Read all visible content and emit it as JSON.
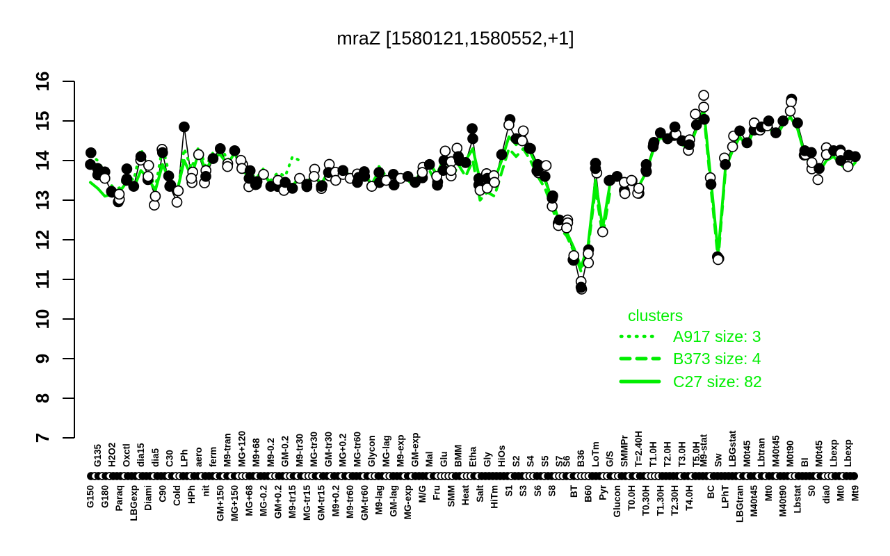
{
  "title": "mraZ [1580121,1580552,+1]",
  "colors": {
    "cluster_green": "#00EE00",
    "series_black": "#000000",
    "background": "#FFFFFF"
  },
  "legend": {
    "heading": "clusters",
    "items": [
      {
        "label": "A917 size: 3",
        "style": "dotted"
      },
      {
        "label": "B373 size: 4",
        "style": "dashed"
      },
      {
        "label": "C27 size: 82",
        "style": "solid"
      }
    ]
  },
  "chart_data": {
    "type": "line",
    "title": "mraZ [1580121,1580552,+1]",
    "ylabel": "",
    "xlabel": "",
    "ylim": [
      7,
      16
    ],
    "yticks": [
      7,
      8,
      9,
      10,
      11,
      12,
      13,
      14,
      15,
      16
    ],
    "grid": false,
    "legend_position": "right-middle",
    "x_axis_note": "experimental condition labels alternate above/below a rug of replicate markers",
    "conditions": [
      [
        "G150",
        "b",
        13.9,
        1
      ],
      [
        "G135",
        "t",
        13.8,
        1
      ],
      [
        "G180",
        "b",
        13.55,
        0
      ],
      [
        "H2O2",
        "t",
        13.2,
        1
      ],
      [
        "Paraq",
        "b",
        13.15,
        0
      ],
      [
        "Oxctl",
        "t",
        13.5,
        1
      ],
      [
        "LBGexp",
        "b",
        13.35,
        1
      ],
      [
        "dia15",
        "t",
        14.1,
        1
      ],
      [
        "Diami",
        "b",
        13.6,
        0
      ],
      [
        "dia5",
        "t",
        13.1,
        0
      ],
      [
        "C90",
        "b",
        14.2,
        1
      ],
      [
        "C30",
        "t",
        13.35,
        1
      ],
      [
        "Cold",
        "b",
        12.95,
        0
      ],
      [
        "LPh",
        "t",
        14.85,
        1
      ],
      [
        "HPh",
        "b",
        13.55,
        0
      ],
      [
        "aero",
        "t",
        14.15,
        0
      ],
      [
        "nit",
        "b",
        13.6,
        1
      ],
      [
        "ferm",
        "t",
        14.05,
        1
      ],
      [
        "GM+150",
        "b",
        14.3,
        1
      ],
      [
        "M9-tran",
        "t",
        13.85,
        0
      ],
      [
        "MG+150",
        "b",
        14.25,
        1
      ],
      [
        "MG+120",
        "t",
        13.8,
        0
      ],
      [
        "MG+68",
        "b",
        13.55,
        1
      ],
      [
        "M9+68",
        "t",
        13.4,
        1
      ],
      [
        "MG-0.2",
        "b",
        13.65,
        0
      ],
      [
        "M9-0.2",
        "t",
        13.35,
        1
      ],
      [
        "GM+0.2",
        "b",
        13.5,
        0
      ],
      [
        "GM-0.2",
        "t",
        13.45,
        1
      ],
      [
        "M9-tr15",
        "b",
        13.3,
        1
      ],
      [
        "M9-tr30",
        "t",
        13.55,
        0
      ],
      [
        "MG-tr15",
        "b",
        13.4,
        1
      ],
      [
        "MG-tr30",
        "t",
        13.6,
        0
      ],
      [
        "GM-tr15",
        "b",
        13.35,
        1
      ],
      [
        "GM-tr30",
        "t",
        13.7,
        1
      ],
      [
        "M9+0.2",
        "b",
        13.5,
        0
      ],
      [
        "MG+0.2",
        "t",
        13.75,
        1
      ],
      [
        "M9-tr60",
        "b",
        13.55,
        0
      ],
      [
        "MG-tr60",
        "t",
        13.45,
        1
      ],
      [
        "GM-tr60",
        "b",
        13.6,
        1
      ],
      [
        "Glycon",
        "t",
        13.35,
        0
      ],
      [
        "M9-lag",
        "b",
        13.7,
        1
      ],
      [
        "MG-lag",
        "t",
        13.5,
        0
      ],
      [
        "GM-lag",
        "b",
        13.65,
        1
      ],
      [
        "M9-exp",
        "t",
        13.55,
        0
      ],
      [
        "MG-exp",
        "b",
        13.6,
        1
      ],
      [
        "GM-exp",
        "t",
        13.45,
        1
      ],
      [
        "M/G",
        "b",
        13.7,
        0
      ],
      [
        "Mal",
        "t",
        13.9,
        1
      ],
      [
        "Fru",
        "b",
        13.6,
        0
      ],
      [
        "Glu",
        "t",
        14.0,
        1
      ],
      [
        "SMM",
        "b",
        13.75,
        0
      ],
      [
        "BMM",
        "t",
        14.1,
        1
      ],
      [
        "Heat",
        "b",
        13.95,
        1
      ],
      [
        "Etha",
        "t",
        14.55,
        1
      ],
      [
        "Salt",
        "b",
        13.25,
        0
      ],
      [
        "Gly",
        "t",
        13.55,
        1
      ],
      [
        "HiTm",
        "b",
        13.45,
        0
      ],
      [
        "HiOs",
        "t",
        14.15,
        1
      ],
      [
        "S1",
        "b",
        14.9,
        0
      ],
      [
        "S2",
        "t",
        14.55,
        1
      ],
      [
        "S3",
        "b",
        14.75,
        0
      ],
      [
        "S4",
        "t",
        14.3,
        1
      ],
      [
        "S6",
        "b",
        13.9,
        1
      ],
      [
        "S5",
        "t",
        13.6,
        1
      ],
      [
        "S8",
        "b",
        13.05,
        1
      ],
      [
        "S7",
        "t",
        12.5,
        1
      ],
      [
        "S6",
        "t",
        12.3,
        0
      ],
      [
        "BT",
        "b",
        11.6,
        0
      ],
      [
        "B36",
        "t",
        10.8,
        1
      ],
      [
        "B60",
        "b",
        11.65,
        0
      ],
      [
        "LoTm",
        "t",
        13.8,
        1
      ],
      [
        "Pyr",
        "b",
        12.2,
        0
      ],
      [
        "G/S",
        "t",
        13.5,
        1
      ],
      [
        "Glucon",
        "b",
        13.6,
        1
      ],
      [
        "SMMPr",
        "t",
        13.45,
        0
      ],
      [
        "T0.0H",
        "b",
        13.5,
        0
      ],
      [
        "T=2.40H",
        "t",
        13.3,
        0
      ],
      [
        "T0.30H",
        "b",
        13.75,
        1
      ],
      [
        "T1.0H",
        "t",
        14.35,
        1
      ],
      [
        "T1.30H",
        "b",
        14.7,
        1
      ],
      [
        "T2.0H",
        "t",
        14.55,
        1
      ],
      [
        "T2.30H",
        "b",
        14.85,
        1
      ],
      [
        "T3.0H",
        "t",
        14.5,
        1
      ],
      [
        "T4.0H",
        "b",
        14.4,
        1
      ],
      [
        "T5.0H",
        "t",
        14.9,
        1
      ],
      [
        "M9-stat",
        "t",
        15.35,
        0
      ],
      [
        "BC",
        "b",
        13.4,
        1
      ],
      [
        "Sw",
        "t",
        11.5,
        0
      ],
      [
        "LPhT",
        "b",
        13.9,
        1
      ],
      [
        "LBGstat",
        "t",
        14.35,
        0
      ],
      [
        "LBGtran",
        "b",
        14.75,
        1
      ],
      [
        "M0t45",
        "t",
        14.45,
        1
      ],
      [
        "M40t45",
        "b",
        14.95,
        0
      ],
      [
        "Lbtran",
        "t",
        14.85,
        1
      ],
      [
        "Mt0",
        "b",
        15.0,
        1
      ],
      [
        "M40t45",
        "t",
        14.7,
        1
      ],
      [
        "M40t90",
        "b",
        15.0,
        1
      ],
      [
        "M0t90",
        "t",
        15.25,
        0
      ],
      [
        "Lbstat",
        "b",
        14.95,
        1
      ],
      [
        "BI",
        "t",
        14.25,
        1
      ],
      [
        "S0",
        "b",
        13.95,
        0
      ],
      [
        "M0t45",
        "t",
        13.8,
        1
      ],
      [
        "dia0",
        "b",
        14.15,
        0
      ],
      [
        "Lbexp",
        "t",
        14.25,
        1
      ],
      [
        "Mt0",
        "b",
        14.0,
        1
      ],
      [
        "Lbexp",
        "t",
        13.85,
        0
      ],
      [
        "Mt9",
        "b",
        14.1,
        1
      ]
    ],
    "series": [
      {
        "name": "C27",
        "style": "solid",
        "color": "#00EE00",
        "values": [
          13.45,
          13.3,
          13.1,
          13.15,
          13.2,
          13.45,
          13.3,
          13.75,
          13.55,
          13.25,
          13.9,
          13.5,
          13.2,
          14.0,
          13.6,
          14.2,
          13.75,
          14.1,
          14.15,
          13.9,
          14.2,
          13.75,
          13.6,
          13.45,
          13.7,
          13.4,
          13.55,
          13.5,
          13.35,
          13.6,
          13.45,
          13.65,
          13.4,
          13.75,
          13.55,
          13.8,
          13.6,
          13.5,
          13.65,
          13.4,
          13.75,
          13.55,
          13.7,
          13.6,
          13.65,
          13.5,
          13.75,
          13.95,
          13.65,
          14.05,
          13.8,
          14.15,
          14.0,
          14.3,
          13.5,
          13.6,
          13.5,
          14.0,
          14.6,
          14.4,
          14.55,
          14.2,
          13.8,
          13.5,
          13.0,
          12.45,
          12.2,
          11.8,
          11.3,
          11.9,
          13.5,
          12.3,
          13.4,
          13.55,
          13.4,
          13.45,
          13.35,
          13.7,
          14.25,
          14.6,
          14.45,
          14.75,
          14.4,
          14.3,
          14.8,
          15.3,
          13.5,
          11.65,
          13.8,
          14.25,
          14.6,
          14.35,
          14.8,
          14.7,
          14.85,
          14.6,
          14.9,
          15.1,
          14.8,
          14.15,
          13.85,
          13.7,
          14.0,
          14.1,
          13.9,
          13.75,
          13.95
        ]
      },
      {
        "name": "B373",
        "style": "dashed",
        "color": "#00EE00",
        "points": [
          [
            44,
            13.5
          ],
          [
            45,
            13.35
          ],
          [
            46,
            13.55
          ],
          [
            47,
            13.75
          ],
          [
            48,
            13.4
          ],
          [
            49,
            13.8
          ],
          [
            50,
            13.5
          ],
          [
            51,
            13.9
          ],
          [
            52,
            13.6
          ],
          [
            53,
            14.0
          ],
          [
            54,
            13.0
          ],
          [
            55,
            13.2
          ],
          [
            56,
            13.1
          ],
          [
            57,
            13.7
          ],
          [
            58,
            14.3
          ],
          [
            59,
            14.1
          ],
          [
            60,
            14.3
          ],
          [
            61,
            14.0
          ],
          [
            62,
            13.6
          ],
          [
            63,
            13.3
          ],
          [
            64,
            12.8
          ],
          [
            65,
            12.3
          ],
          [
            66,
            12.1
          ],
          [
            67,
            11.7
          ],
          [
            68,
            11.2
          ],
          [
            69,
            11.8
          ],
          [
            70,
            13.3
          ],
          [
            71,
            12.1
          ],
          [
            72,
            13.2
          ],
          [
            85,
            15.2
          ],
          [
            86,
            13.3
          ],
          [
            87,
            11.5
          ],
          [
            88,
            13.7
          ]
        ]
      },
      {
        "name": "A917",
        "style": "dotted",
        "color": "#00EE00",
        "points": [
          [
            0,
            14.15
          ],
          [
            1,
            14.0
          ],
          [
            2,
            13.7
          ],
          [
            3,
            13.35
          ],
          [
            4,
            13.3
          ],
          [
            5,
            13.65
          ],
          [
            6,
            13.5
          ],
          [
            7,
            14.3
          ],
          [
            8,
            13.8
          ],
          [
            9,
            13.3
          ],
          [
            10,
            14.35
          ],
          [
            11,
            13.6
          ],
          [
            12,
            13.1
          ],
          [
            13,
            14.3
          ],
          [
            14,
            13.8
          ],
          [
            15,
            14.35
          ],
          [
            16,
            13.85
          ],
          [
            17,
            14.2
          ],
          [
            18,
            14.4
          ],
          [
            19,
            14.0
          ],
          [
            20,
            14.3
          ],
          [
            21,
            13.9
          ],
          [
            22,
            13.7
          ],
          [
            23,
            13.55
          ],
          [
            24,
            13.8
          ],
          [
            25,
            13.5
          ],
          [
            26,
            13.7
          ],
          [
            27,
            13.6
          ],
          [
            28,
            14.1
          ],
          [
            29,
            14.0
          ],
          [
            40,
            13.85
          ],
          [
            41,
            13.6
          ],
          [
            46,
            13.9
          ],
          [
            47,
            14.0
          ]
        ]
      }
    ]
  }
}
